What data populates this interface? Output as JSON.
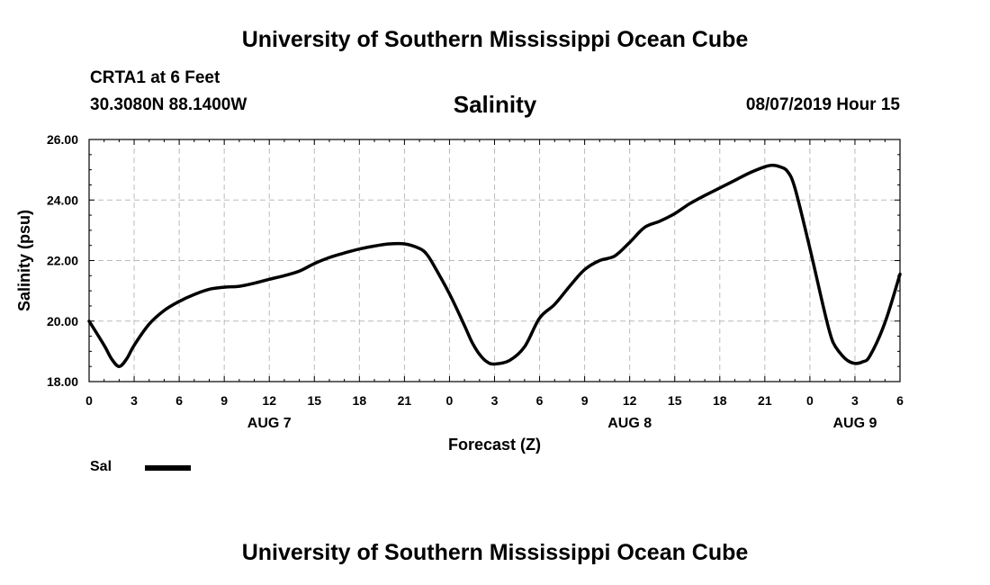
{
  "header": {
    "top_title": "University of Southern Mississippi Ocean Cube",
    "station": "CRTA1 at 6 Feet",
    "coords": "30.3080N 88.1400W",
    "datetime": "08/07/2019 Hour 15"
  },
  "footer": {
    "title": "University of Southern Mississippi Ocean Cube"
  },
  "legend": {
    "label": "Sal"
  },
  "colors": {
    "line": "#000000",
    "grid": "#bbbbbb",
    "background": "#ffffff"
  },
  "chart_data": {
    "type": "line",
    "title": "Salinity",
    "xlabel": "Forecast (Z)",
    "ylabel": "Salinity (psu)",
    "xlim": [
      0,
      54
    ],
    "ylim": [
      18,
      26
    ],
    "x_unit": "hours",
    "x_ticks": [
      0,
      3,
      6,
      9,
      12,
      15,
      18,
      21,
      24,
      27,
      30,
      33,
      36,
      39,
      42,
      45,
      48,
      51,
      54
    ],
    "x_tick_labels": [
      "0",
      "3",
      "6",
      "9",
      "12",
      "15",
      "18",
      "21",
      "0",
      "3",
      "6",
      "9",
      "12",
      "15",
      "18",
      "21",
      "0",
      "3",
      "6"
    ],
    "y_ticks": [
      18,
      20,
      22,
      24,
      26
    ],
    "y_tick_labels": [
      "18.00",
      "20.00",
      "22.00",
      "24.00",
      "26.00"
    ],
    "day_labels": [
      {
        "label": "AUG 7",
        "x": 12
      },
      {
        "label": "AUG 8",
        "x": 36
      },
      {
        "label": "AUG 9",
        "x": 51
      }
    ],
    "grid": true,
    "legend_position": "bottom-left",
    "series": [
      {
        "name": "Sal",
        "x": [
          0,
          1,
          1.5,
          2,
          2.5,
          3,
          4,
          5,
          6,
          7,
          8,
          9,
          10,
          11,
          12,
          13,
          14,
          15,
          16,
          17,
          18,
          19,
          20,
          21,
          22,
          22.5,
          23,
          24,
          25,
          25.5,
          26,
          26.5,
          27,
          28,
          29,
          30,
          31,
          32,
          33,
          34,
          35,
          36,
          37,
          38,
          39,
          40,
          41,
          42,
          43,
          44,
          45,
          45.5,
          46,
          46.5,
          47,
          48,
          49,
          49.5,
          50,
          50.5,
          51,
          51.5,
          52,
          53,
          54
        ],
        "y": [
          20.0,
          19.2,
          18.75,
          18.5,
          18.75,
          19.2,
          19.9,
          20.35,
          20.65,
          20.88,
          21.05,
          21.12,
          21.15,
          21.25,
          21.38,
          21.5,
          21.65,
          21.9,
          22.1,
          22.25,
          22.38,
          22.48,
          22.55,
          22.55,
          22.4,
          22.2,
          21.8,
          20.9,
          19.85,
          19.3,
          18.9,
          18.65,
          18.58,
          18.7,
          19.15,
          20.1,
          20.55,
          21.15,
          21.7,
          22.0,
          22.15,
          22.6,
          23.1,
          23.3,
          23.55,
          23.88,
          24.15,
          24.4,
          24.65,
          24.9,
          25.1,
          25.15,
          25.1,
          24.95,
          24.4,
          22.4,
          20.25,
          19.35,
          18.95,
          18.7,
          18.6,
          18.65,
          18.85,
          19.95,
          21.55
        ]
      }
    ]
  }
}
